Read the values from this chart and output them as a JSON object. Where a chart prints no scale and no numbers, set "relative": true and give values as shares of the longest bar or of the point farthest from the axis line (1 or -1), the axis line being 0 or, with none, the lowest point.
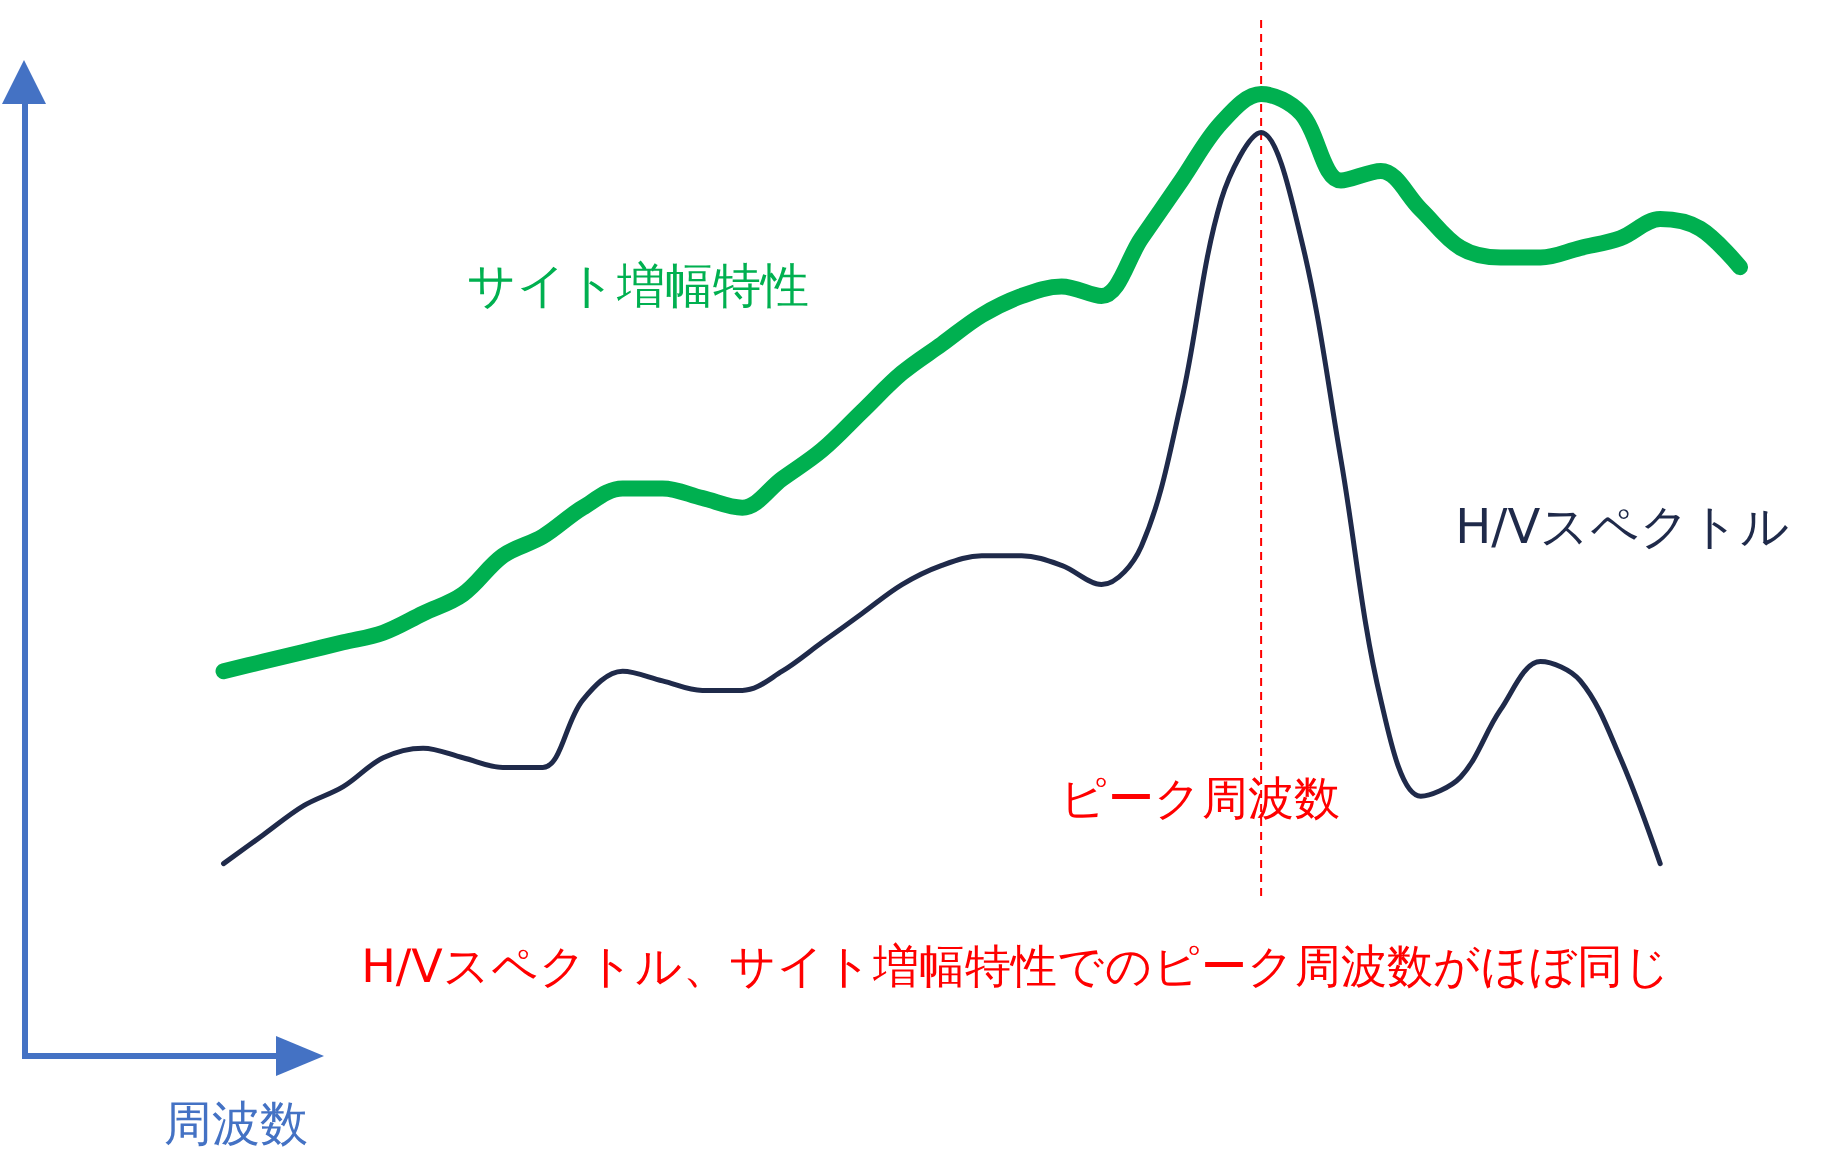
{
  "chart_data": {
    "type": "line",
    "relative": true,
    "xlabel": "周波数",
    "categories": [
      null,
      null,
      null,
      null,
      null,
      null,
      null,
      null,
      null,
      null,
      null,
      null,
      null,
      null,
      null,
      null,
      null,
      null,
      null,
      null,
      null,
      null,
      null,
      null,
      null,
      null,
      null,
      null,
      null,
      null,
      null,
      null,
      null,
      null,
      null,
      null,
      null,
      null,
      null,
      null,
      null,
      null,
      null,
      null
    ],
    "series": [
      {
        "name": "サイト増幅特性",
        "color": "#00b050",
        "values": [
          null,
          null,
          null,
          null,
          null,
          0.4,
          0.41,
          0.42,
          0.43,
          0.44,
          0.46,
          0.48,
          0.52,
          0.54,
          0.57,
          0.59,
          0.59,
          0.58,
          0.57,
          0.6,
          0.63,
          0.67,
          0.71,
          0.74,
          0.77,
          0.79,
          0.8,
          0.79,
          0.85,
          0.91,
          0.97,
          1.0,
          0.98,
          0.91,
          0.92,
          0.88,
          0.84,
          0.83,
          0.83,
          0.84,
          0.85,
          0.87,
          0.86,
          0.82
        ]
      },
      {
        "name": "H/Vスペクトル",
        "color": "#1f2a4a",
        "values": [
          null,
          null,
          null,
          null,
          null,
          0.2,
          0.23,
          0.26,
          0.28,
          0.31,
          0.32,
          0.31,
          0.3,
          0.3,
          0.37,
          0.4,
          0.39,
          0.38,
          0.38,
          0.4,
          0.43,
          0.46,
          0.49,
          0.51,
          0.52,
          0.52,
          0.51,
          0.49,
          0.53,
          0.68,
          0.89,
          0.96,
          0.85,
          0.62,
          0.37,
          0.27,
          0.29,
          0.36,
          0.41,
          0.39,
          0.31,
          0.2,
          null,
          null
        ]
      }
    ],
    "annotations": [
      "ピーク周波数",
      "H/Vスペクトル、サイト増幅特性でのピーク周波数がほぼ同じ"
    ],
    "grid": false,
    "legend": false,
    "marker": "none"
  }
}
